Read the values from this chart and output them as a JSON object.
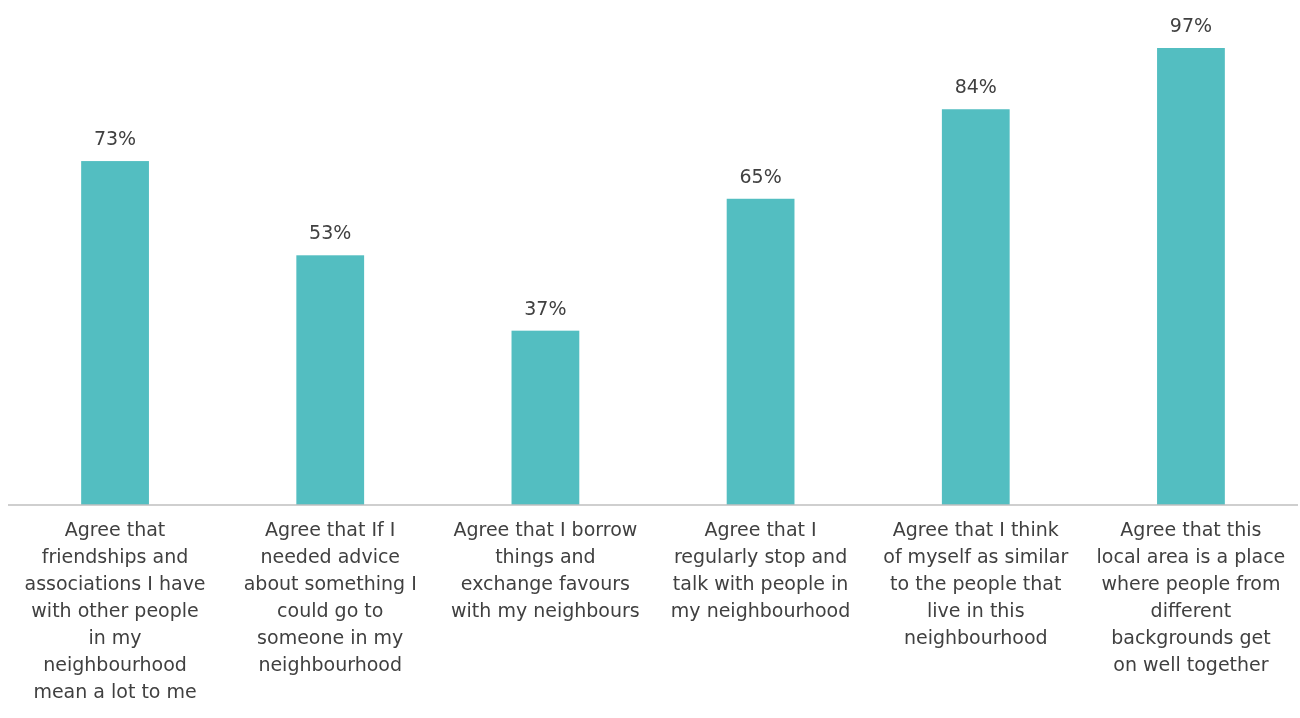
{
  "chart_data": {
    "type": "bar",
    "categories": [
      "Agree that friendships and associations I have with other people in my neighbourhood mean a lot to me",
      "Agree that If I needed advice about something I could go to someone in my neighbourhood",
      "Agree that I borrow things and exchange favours with my neighbours",
      "Agree that I regularly stop and talk with people in my neighbourhood",
      "Agree that I think of myself as similar to the people that live in this neighbourhood",
      "Agree that this local area is a place where people from different backgrounds get on well together"
    ],
    "values": [
      73,
      53,
      37,
      65,
      84,
      97
    ],
    "value_labels": [
      "73%",
      "53%",
      "37%",
      "65%",
      "84%",
      "97%"
    ],
    "color": "#53bec1"
  }
}
